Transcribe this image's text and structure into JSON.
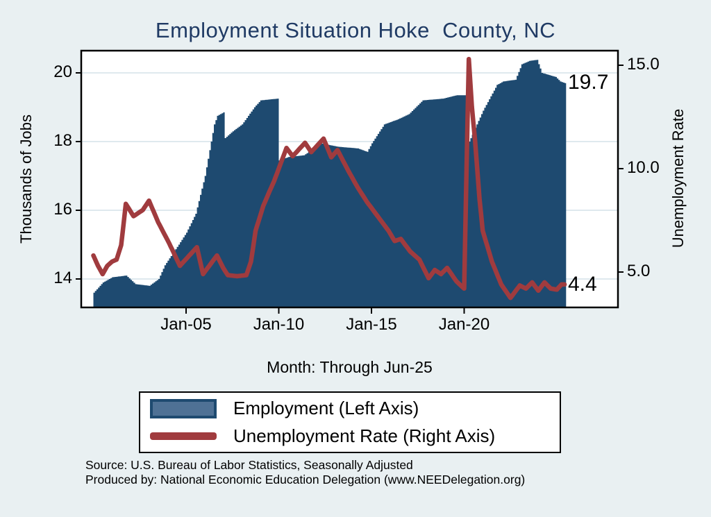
{
  "title": "Employment Situation Hoke  County, NC",
  "colors": {
    "background": "#e9f0f2",
    "plot_background": "#ffffff",
    "grid": "#dfe9ee",
    "axis": "#000000",
    "title_text": "#1f3a64",
    "employment_fill": "#1e4a70",
    "unemployment_line": "#a03b3e",
    "legend_emp_swatch_fill": "#4f7195"
  },
  "chart_data": {
    "type": "area+line (dual axis)",
    "title": "Employment Situation Hoke  County, NC",
    "x_axis": {
      "title": "Month: Through Jun-25",
      "ticks": [
        {
          "label": "Jan-05",
          "t": 2005
        },
        {
          "label": "Jan-10",
          "t": 2010
        },
        {
          "label": "Jan-15",
          "t": 2015
        },
        {
          "label": "Jan-20",
          "t": 2020
        }
      ],
      "range": [
        "Jan-00",
        "Jun-25"
      ]
    },
    "left_axis": {
      "title": "Thousands of Jobs",
      "ticks": [
        {
          "label": "20",
          "value": 20
        },
        {
          "label": "18",
          "value": 18
        },
        {
          "label": "16",
          "value": 16
        },
        {
          "label": "14",
          "value": 14
        }
      ],
      "range": [
        13.17,
        20.65
      ]
    },
    "right_axis": {
      "title": "Unemployment Rate",
      "ticks": [
        {
          "label": "15.0",
          "value": 15
        },
        {
          "label": "10.0",
          "value": 10
        },
        {
          "label": "5.0",
          "value": 5
        }
      ],
      "range": [
        3.29,
        15.7
      ]
    },
    "series": [
      {
        "name": "Employment (Left Axis)",
        "axis": "left",
        "type": "area",
        "color": "#1e4a70",
        "anchors": [
          [
            "2000-01",
            13.6
          ],
          [
            "2000-07",
            13.9
          ],
          [
            "2001-01",
            14.05
          ],
          [
            "2001-10",
            14.1
          ],
          [
            "2002-04",
            13.85
          ],
          [
            "2003-01",
            13.8
          ],
          [
            "2003-07",
            14.0
          ],
          [
            "2003-11",
            14.4
          ],
          [
            "2004-08",
            15.0
          ],
          [
            "2005-01",
            15.35
          ],
          [
            "2005-07",
            15.9
          ],
          [
            "2006-01",
            17.0
          ],
          [
            "2006-07",
            18.5
          ],
          [
            "2006-09",
            18.75
          ],
          [
            "2007-01",
            18.85
          ],
          [
            "2007-02",
            18.1
          ],
          [
            "2007-07",
            18.3
          ],
          [
            "2008-01",
            18.5
          ],
          [
            "2008-09",
            19.0
          ],
          [
            "2009-01",
            19.2
          ],
          [
            "2009-12",
            19.25
          ],
          [
            "2010-01",
            17.45
          ],
          [
            "2010-07",
            17.55
          ],
          [
            "2011-05",
            17.6
          ],
          [
            "2012-04",
            17.95
          ],
          [
            "2013-03",
            17.85
          ],
          [
            "2014-04",
            17.8
          ],
          [
            "2014-10",
            17.7
          ],
          [
            "2015-01",
            17.95
          ],
          [
            "2015-09",
            18.5
          ],
          [
            "2016-06",
            18.65
          ],
          [
            "2017-01",
            18.8
          ],
          [
            "2017-10",
            19.2
          ],
          [
            "2018-11",
            19.25
          ],
          [
            "2019-08",
            19.35
          ],
          [
            "2020-02",
            19.35
          ],
          [
            "2020-04",
            18.0
          ],
          [
            "2020-08",
            18.4
          ],
          [
            "2021-01",
            18.9
          ],
          [
            "2021-10",
            19.65
          ],
          [
            "2022-02",
            19.75
          ],
          [
            "2022-10",
            19.8
          ],
          [
            "2023-02",
            20.25
          ],
          [
            "2023-07",
            20.35
          ],
          [
            "2023-12",
            20.38
          ],
          [
            "2024-03",
            20.0
          ],
          [
            "2024-12",
            19.88
          ],
          [
            "2025-03",
            19.75
          ],
          [
            "2025-06",
            19.7
          ]
        ]
      },
      {
        "name": "Unemployment Rate (Right Axis)",
        "axis": "right",
        "type": "line",
        "color": "#a03b3e",
        "anchors": [
          [
            "2000-01",
            5.8
          ],
          [
            "2000-04",
            5.3
          ],
          [
            "2000-07",
            4.9
          ],
          [
            "2000-10",
            5.3
          ],
          [
            "2001-01",
            5.5
          ],
          [
            "2001-04",
            5.6
          ],
          [
            "2001-07",
            6.3
          ],
          [
            "2001-10",
            8.3
          ],
          [
            "2002-03",
            7.7
          ],
          [
            "2002-09",
            8.0
          ],
          [
            "2003-01",
            8.45
          ],
          [
            "2003-07",
            7.4
          ],
          [
            "2004-02",
            6.4
          ],
          [
            "2004-09",
            5.3
          ],
          [
            "2005-08",
            6.2
          ],
          [
            "2005-12",
            4.9
          ],
          [
            "2006-04",
            5.3
          ],
          [
            "2006-09",
            5.8
          ],
          [
            "2007-01",
            5.2
          ],
          [
            "2007-04",
            4.85
          ],
          [
            "2007-10",
            4.8
          ],
          [
            "2008-04",
            4.85
          ],
          [
            "2008-07",
            5.5
          ],
          [
            "2008-10",
            7.0
          ],
          [
            "2009-03",
            8.2
          ],
          [
            "2009-07",
            8.9
          ],
          [
            "2009-10",
            9.4
          ],
          [
            "2010-01",
            10.0
          ],
          [
            "2010-06",
            11.0
          ],
          [
            "2010-10",
            10.6
          ],
          [
            "2011-06",
            11.25
          ],
          [
            "2011-10",
            10.8
          ],
          [
            "2012-06",
            11.45
          ],
          [
            "2012-11",
            10.55
          ],
          [
            "2013-03",
            10.9
          ],
          [
            "2013-10",
            9.9
          ],
          [
            "2014-04",
            9.1
          ],
          [
            "2014-10",
            8.4
          ],
          [
            "2015-06",
            7.6
          ],
          [
            "2015-12",
            7.0
          ],
          [
            "2016-04",
            6.5
          ],
          [
            "2016-08",
            6.6
          ],
          [
            "2017-02",
            6.0
          ],
          [
            "2017-08",
            5.6
          ],
          [
            "2018-02",
            4.7
          ],
          [
            "2018-06",
            5.1
          ],
          [
            "2018-10",
            4.9
          ],
          [
            "2019-02",
            5.2
          ],
          [
            "2019-08",
            4.55
          ],
          [
            "2020-01",
            4.2
          ],
          [
            "2020-04",
            15.3
          ],
          [
            "2020-06",
            13.0
          ],
          [
            "2020-08",
            11.4
          ],
          [
            "2020-11",
            8.5
          ],
          [
            "2021-01",
            7.0
          ],
          [
            "2021-07",
            5.5
          ],
          [
            "2022-01",
            4.4
          ],
          [
            "2022-07",
            3.75
          ],
          [
            "2023-01",
            4.35
          ],
          [
            "2023-05",
            4.2
          ],
          [
            "2023-09",
            4.5
          ],
          [
            "2024-01",
            4.1
          ],
          [
            "2024-05",
            4.5
          ],
          [
            "2024-09",
            4.2
          ],
          [
            "2025-01",
            4.15
          ],
          [
            "2025-04",
            4.4
          ],
          [
            "2025-06",
            4.4
          ]
        ]
      }
    ],
    "annotations": [
      {
        "text": "19.7",
        "series": "Employment (Left Axis)",
        "meaning": "last value Jun-25"
      },
      {
        "text": "4.4",
        "series": "Unemployment Rate (Right Axis)",
        "meaning": "last value Jun-25"
      }
    ],
    "legend_position": "bottom",
    "grid": "horizontal lines at left-axis ticks"
  },
  "legend": {
    "employment_label": "Employment (Left Axis)",
    "unemployment_label": "Unemployment Rate (Right Axis)"
  },
  "source_line1": "Source: U.S. Bureau of Labor Statistics, Seasonally Adjusted",
  "source_line2": "Produced by: National Economic Education Delegation (www.NEEDelegation.org)"
}
